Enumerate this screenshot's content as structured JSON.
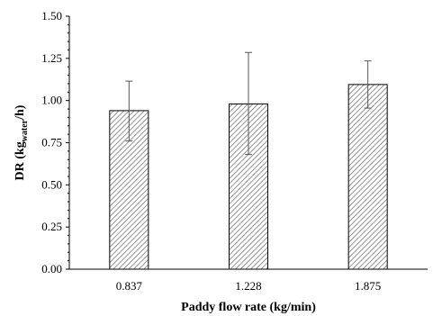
{
  "chart_data": {
    "type": "bar",
    "categories": [
      "0.837",
      "1.228",
      "1.875"
    ],
    "values": [
      0.94,
      0.98,
      1.095
    ],
    "error_upper": [
      1.115,
      1.285,
      1.235
    ],
    "error_lower": [
      0.76,
      0.68,
      0.955
    ],
    "xlabel": "Paddy flow rate (kg/min)",
    "ylabel_main": "DR (kg",
    "ylabel_sub": "water",
    "ylabel_tail": "/h)",
    "ylim": [
      0,
      1.5
    ],
    "yticks": [
      "0.00",
      "0.25",
      "0.50",
      "0.75",
      "1.00",
      "1.25",
      "1.50"
    ],
    "ytick_values": [
      0,
      0.25,
      0.5,
      0.75,
      1.0,
      1.25,
      1.5
    ],
    "grid": false,
    "bar_fill": "diagonal-hatch",
    "colors": {
      "axis": "#000000",
      "bar_edge": "#000000",
      "hatch": "#555555",
      "error_bar": "#555555"
    }
  }
}
